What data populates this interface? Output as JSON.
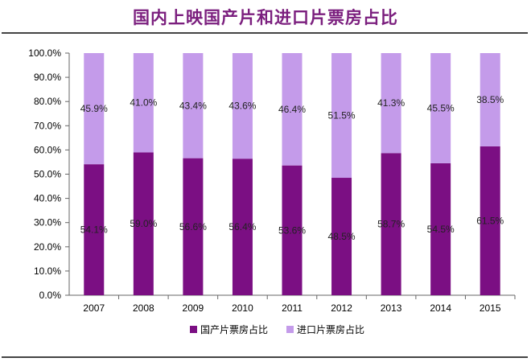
{
  "header": {
    "title": "国内上映国产片和进口片票房占比"
  },
  "chart_data": {
    "type": "bar",
    "stacked": true,
    "categories": [
      "2007",
      "2008",
      "2009",
      "2010",
      "2011",
      "2012",
      "2013",
      "2014",
      "2015"
    ],
    "series": [
      {
        "name": "国产片票房占比",
        "color": "#7B0F83",
        "values": [
          54.1,
          59.0,
          56.6,
          56.4,
          53.6,
          48.5,
          58.7,
          54.5,
          61.5
        ],
        "labels": [
          "54.1%",
          "59.0%",
          "56.6%",
          "56.4%",
          "53.6%",
          "48.5%",
          "58.7%",
          "54.5%",
          "61.5%"
        ]
      },
      {
        "name": "进口片票房占比",
        "color": "#C49BEA",
        "values": [
          45.9,
          41.0,
          43.4,
          43.6,
          46.4,
          51.5,
          41.3,
          45.5,
          38.5
        ],
        "labels": [
          "45.9%",
          "41.0%",
          "43.4%",
          "43.6%",
          "46.4%",
          "51.5%",
          "41.3%",
          "45.5%",
          "38.5%"
        ]
      }
    ],
    "yticks": [
      "0.0%",
      "10.0%",
      "20.0%",
      "30.0%",
      "40.0%",
      "50.0%",
      "60.0%",
      "70.0%",
      "80.0%",
      "90.0%",
      "100.0%"
    ],
    "ylim": [
      0,
      100
    ],
    "xlabel": "",
    "ylabel": "",
    "legend_position": "bottom"
  }
}
